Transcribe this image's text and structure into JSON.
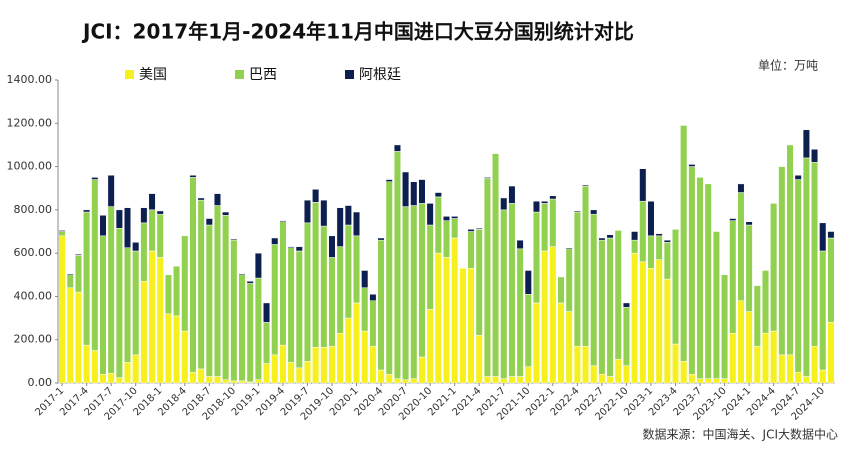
{
  "chart_data": {
    "type": "stacked_bar",
    "title": "JCI：2017年1月-2024年11月中国进口大豆分国别统计对比",
    "unit": "单位：万吨",
    "source": "数据来源：中国海关、JCI大数据中心",
    "categories": [
      "2017-1",
      null,
      null,
      "2017-4",
      null,
      null,
      "2017-7",
      null,
      null,
      "2017-10",
      null,
      null,
      "2018-1",
      null,
      null,
      "2018-4",
      null,
      null,
      "2018-7",
      null,
      null,
      "2018-10",
      null,
      null,
      "2019-1",
      null,
      null,
      "2019-4",
      null,
      null,
      "2019-7",
      null,
      null,
      "2019-10",
      null,
      null,
      "2020-1",
      null,
      null,
      "2020-4",
      null,
      null,
      "2020-7",
      null,
      null,
      "2020-10",
      null,
      null,
      "2021-1",
      null,
      null,
      "2021-4",
      null,
      null,
      "2021-7",
      null,
      null,
      "2021-10",
      null,
      null,
      "2022-1",
      null,
      null,
      "2022-4",
      null,
      null,
      "2022-7",
      null,
      null,
      "2022-10",
      null,
      null,
      "2023-1",
      null,
      null,
      "2023-4",
      null,
      null,
      "2023-7",
      null,
      null,
      "2023-10",
      null,
      null,
      "2024-1",
      null,
      null,
      "2024-4",
      null,
      null,
      "2024-7",
      null,
      null,
      "2024-10",
      null
    ],
    "series": [
      {
        "name": "美国",
        "color": "#f5f01e",
        "values": [
          680,
          440,
          420,
          175,
          150,
          40,
          45,
          25,
          95,
          130,
          470,
          610,
          580,
          320,
          310,
          240,
          50,
          65,
          30,
          30,
          15,
          10,
          10,
          5,
          15,
          90,
          130,
          175,
          95,
          70,
          100,
          165,
          165,
          170,
          230,
          300,
          370,
          240,
          170,
          60,
          40,
          20,
          15,
          20,
          120,
          340,
          600,
          580,
          670,
          530,
          530,
          220,
          30,
          30,
          20,
          30,
          30,
          75,
          370,
          610,
          630,
          370,
          330,
          170,
          170,
          80,
          40,
          30,
          110,
          80,
          600,
          560,
          530,
          570,
          480,
          180,
          100,
          40,
          20,
          20,
          20,
          20,
          230,
          380,
          330,
          170,
          230,
          240,
          130,
          130,
          50,
          30,
          170,
          60,
          280
        ]
      },
      {
        "name": "巴西",
        "color": "#92d050",
        "values": [
          20,
          60,
          170,
          615,
          790,
          640,
          770,
          690,
          530,
          480,
          270,
          190,
          200,
          180,
          230,
          440,
          900,
          780,
          700,
          790,
          760,
          650,
          490,
          455,
          470,
          190,
          510,
          570,
          530,
          540,
          640,
          670,
          560,
          410,
          400,
          430,
          310,
          200,
          210,
          600,
          890,
          1050,
          800,
          800,
          710,
          390,
          260,
          170,
          90,
          0,
          170,
          490,
          915,
          1030,
          780,
          800,
          590,
          335,
          420,
          220,
          220,
          120,
          290,
          620,
          740,
          700,
          620,
          640,
          595,
          270,
          60,
          280,
          150,
          110,
          170,
          530,
          1090,
          960,
          930,
          900,
          680,
          480,
          520,
          500,
          400,
          280,
          290,
          590,
          870,
          970,
          890,
          1010,
          850,
          550,
          390
        ]
      },
      {
        "name": "阿根廷",
        "color": "#0d1f4f",
        "values": [
          5,
          5,
          5,
          10,
          10,
          95,
          145,
          85,
          185,
          40,
          70,
          75,
          15,
          0,
          0,
          0,
          10,
          10,
          30,
          55,
          15,
          5,
          5,
          10,
          115,
          90,
          30,
          5,
          5,
          20,
          105,
          60,
          120,
          100,
          180,
          90,
          110,
          80,
          30,
          10,
          10,
          30,
          160,
          110,
          110,
          100,
          20,
          20,
          10,
          0,
          10,
          5,
          5,
          0,
          55,
          80,
          40,
          110,
          50,
          10,
          15,
          0,
          5,
          5,
          5,
          20,
          10,
          15,
          0,
          20,
          40,
          150,
          160,
          10,
          10,
          0,
          0,
          10,
          0,
          0,
          0,
          0,
          10,
          40,
          15,
          0,
          0,
          0,
          0,
          0,
          20,
          130,
          60,
          130,
          30
        ]
      }
    ],
    "ylim": [
      0,
      1400
    ],
    "yticks": [
      {
        "value": 0,
        "label": "0.00"
      },
      {
        "value": 200,
        "label": "200.00"
      },
      {
        "value": 400,
        "label": "400.00"
      },
      {
        "value": 600,
        "label": "600.00"
      },
      {
        "value": 800,
        "label": "800.00"
      },
      {
        "value": 1000,
        "label": "1000.00"
      },
      {
        "value": 1200,
        "label": "1200.00"
      },
      {
        "value": 1400,
        "label": "1400.00"
      }
    ],
    "grid": false,
    "legend": "top"
  }
}
